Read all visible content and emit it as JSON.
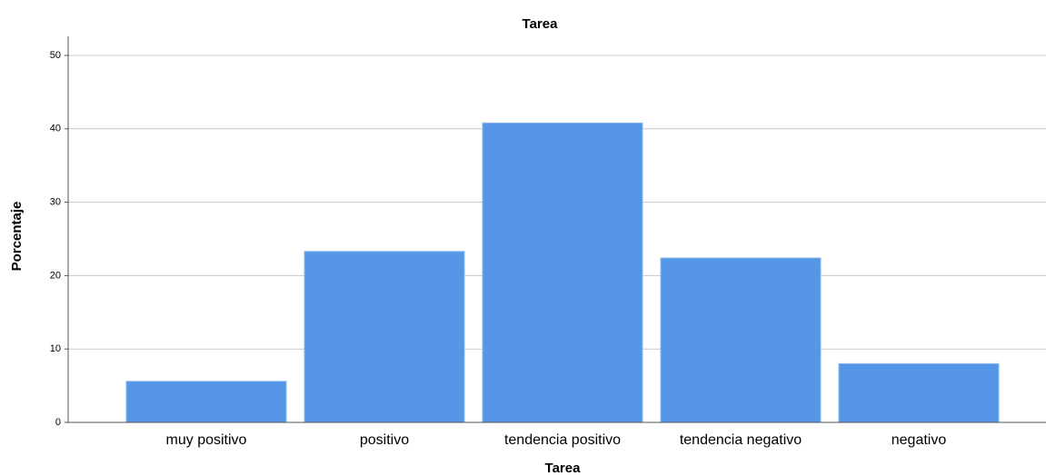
{
  "chart_data": {
    "type": "bar",
    "title": "Tarea",
    "x_label": "Tarea",
    "y_label": "Porcentaje",
    "categories": [
      "muy positivo",
      "positivo",
      "tendencia positivo",
      "tendencia negativo",
      "negativo"
    ],
    "values": [
      5.6,
      23.3,
      40.8,
      22.4,
      8.0
    ],
    "color": "#5596e6",
    "ylim": [
      0,
      52.6
    ],
    "yticks": [
      0,
      10,
      20,
      30,
      40,
      50
    ],
    "grid": true
  }
}
